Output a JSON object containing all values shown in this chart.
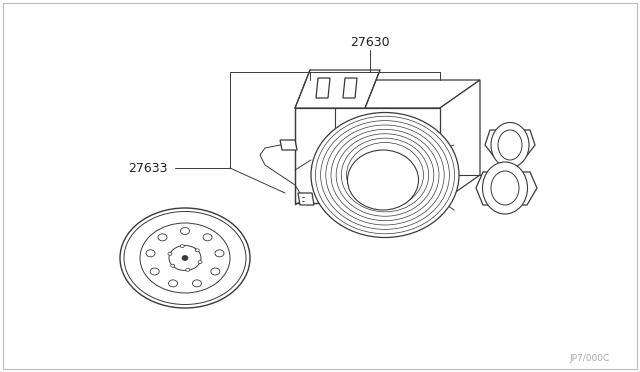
{
  "background_color": "#ffffff",
  "border_color": "#cccccc",
  "label_27630": "27630",
  "label_27633": "27633",
  "watermark": "JP7/000C",
  "line_color": "#3a3a3a",
  "line_width": 0.9
}
